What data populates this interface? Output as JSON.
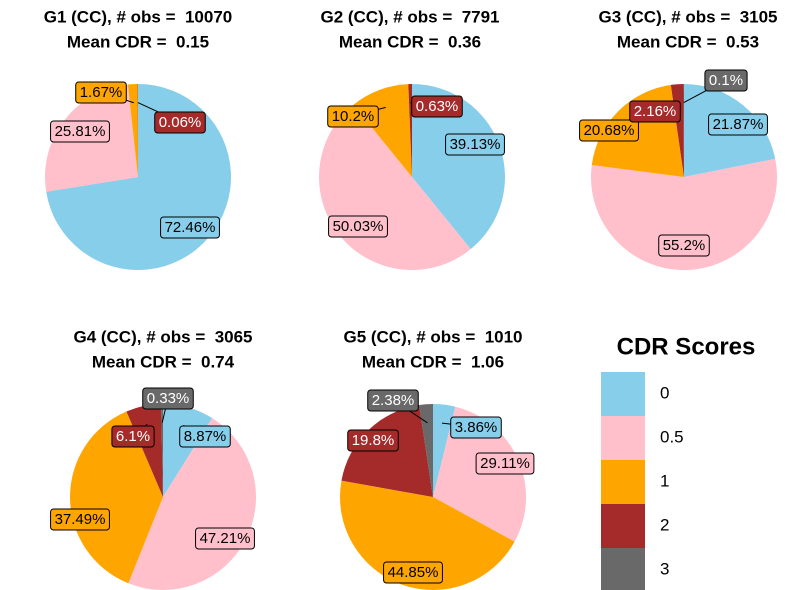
{
  "chart_data": [
    {
      "type": "pie",
      "title": "G1 (CC), # obs =  10070",
      "subtitle": "Mean CDR =  0.15",
      "values": [
        72.46,
        25.81,
        1.67,
        0.06
      ],
      "value_labels": [
        "72.46%",
        "25.81%",
        "1.67%",
        "0.06%"
      ]
    },
    {
      "type": "pie",
      "title": "G2 (CC), # obs =  7791",
      "subtitle": "Mean CDR =  0.36",
      "values": [
        39.13,
        50.03,
        10.2,
        0.63
      ],
      "value_labels": [
        "39.13%",
        "50.03%",
        "10.2%",
        "0.63%"
      ]
    },
    {
      "type": "pie",
      "title": "G3 (CC), # obs =  3105",
      "subtitle": "Mean CDR =  0.53",
      "values": [
        21.87,
        55.2,
        20.68,
        2.16,
        0.1
      ],
      "value_labels": [
        "21.87%",
        "55.2%",
        "20.68%",
        "2.16%",
        "0.1%"
      ]
    },
    {
      "type": "pie",
      "title": "G4 (CC), # obs =  3065",
      "subtitle": "Mean CDR =  0.74",
      "values": [
        8.87,
        47.21,
        37.49,
        6.1,
        0.33
      ],
      "value_labels": [
        "8.87%",
        "47.21%",
        "37.49%",
        "6.1%",
        "0.33%"
      ]
    },
    {
      "type": "pie",
      "title": "G5 (CC), # obs =  1010",
      "subtitle": "Mean CDR =  1.06",
      "values": [
        3.86,
        29.11,
        44.85,
        19.8,
        2.38
      ],
      "value_labels": [
        "3.86%",
        "29.11%",
        "44.85%",
        "19.8%",
        "2.38%"
      ]
    }
  ],
  "legend": {
    "title": "CDR Scores",
    "labels": [
      "0",
      "0.5",
      "1",
      "2",
      "3"
    ],
    "colors": [
      "#87ceeb",
      "#ffc0cb",
      "#ffa500",
      "#a52a2a",
      "#696969"
    ]
  }
}
